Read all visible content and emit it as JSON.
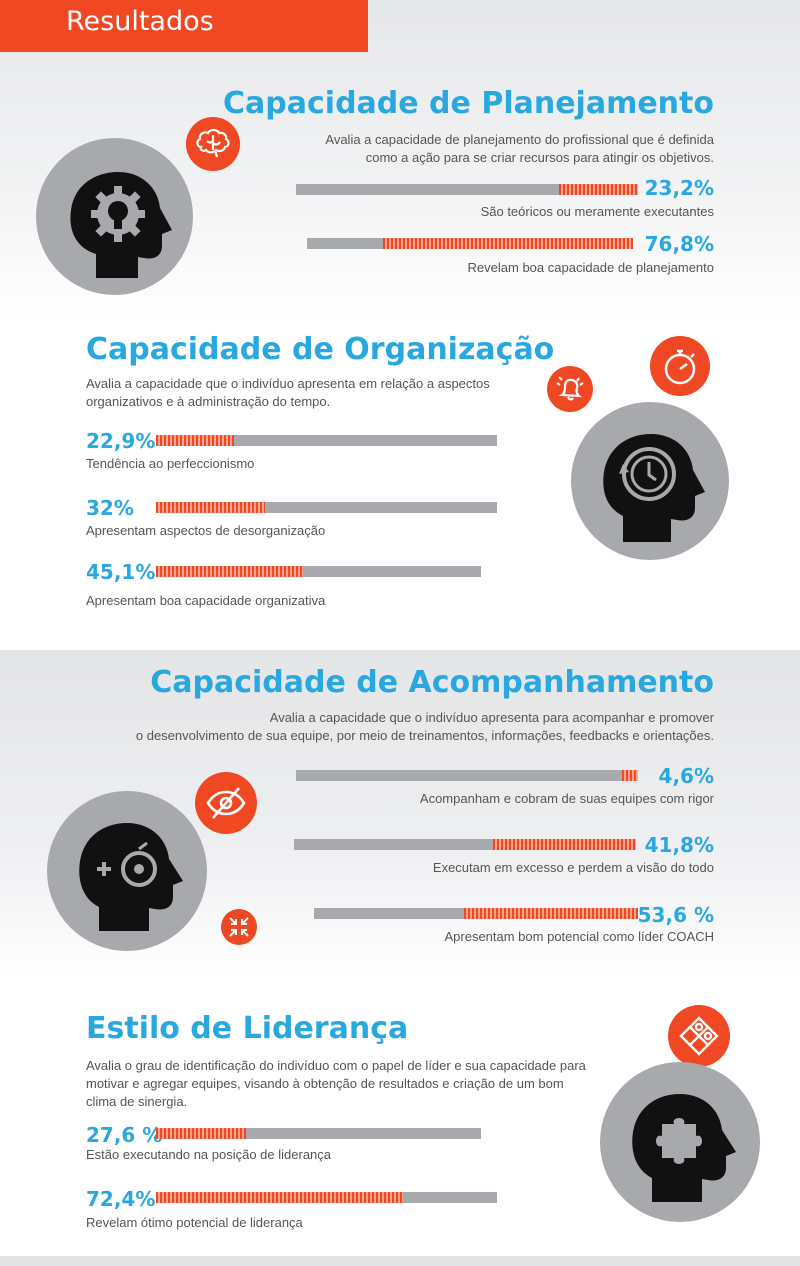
{
  "header": {
    "title": "Resultados"
  },
  "colors": {
    "accent": "#ef4823",
    "title": "#29a8e0",
    "bar": "#a7a9ac",
    "icon_dark": "#111111"
  },
  "sections": [
    {
      "title": "Capacidade de Planejamento",
      "description_lines": [
        "Avalia a capacidade de planejamento do profissional que é definida",
        "como a ação para se criar recursos para atingir os objetivos."
      ],
      "icons": [
        "brain-icon",
        "head-gear-bulb-icon"
      ],
      "stats": [
        {
          "value": "23,2%",
          "fraction": 0.232,
          "label": "São teóricos ou meramente executantes"
        },
        {
          "value": "76,8%",
          "fraction": 0.768,
          "label": "Revelam boa capacidade de planejamento"
        }
      ]
    },
    {
      "title": "Capacidade de Organização",
      "description_lines": [
        "Avalia a capacidade que o indivíduo apresenta em relação a aspectos",
        "organizativos e  à administração do tempo."
      ],
      "icons": [
        "stopwatch-icon",
        "alarm-bell-icon",
        "head-clock-icon"
      ],
      "stats": [
        {
          "value": "22,9%",
          "fraction": 0.229,
          "label": "Tendência ao perfeccionismo"
        },
        {
          "value": "32%",
          "fraction": 0.32,
          "label": "Apresentam aspectos de desorganização"
        },
        {
          "value": "45,1%",
          "fraction": 0.451,
          "label": "Apresentam boa capacidade organizativa"
        }
      ]
    },
    {
      "title": "Capacidade de Acompanhamento",
      "description_lines": [
        "Avalia a capacidade que o indivíduo apresenta para acompanhar e promover",
        "o desenvolvimento de sua equipe, por meio de treinamentos, informações, feedbacks e orientações."
      ],
      "icons": [
        "eye-slash-icon",
        "compress-arrows-icon",
        "head-target-icon"
      ],
      "stats": [
        {
          "value": "4,6%",
          "fraction": 0.046,
          "label": "Acompanham e cobram de suas equipes com rigor"
        },
        {
          "value": "41,8%",
          "fraction": 0.418,
          "label": "Executam em excesso e perdem a visão do todo"
        },
        {
          "value": "53,6 %",
          "fraction": 0.536,
          "label": "Apresentam bom potencial como líder COACH"
        }
      ]
    },
    {
      "title": "Estilo de Liderança",
      "description_lines": [
        "Avalia o grau de identificação do indivíduo com o papel de líder e sua capacidade para",
        "motivar e agregar equipes, visando à obtenção de resultados e criação de um bom",
        "clima de sinergia."
      ],
      "icons": [
        "puzzle-icon",
        "head-puzzle-icon"
      ],
      "stats": [
        {
          "value": "27,6 %",
          "fraction": 0.276,
          "label": "Estão executando na posição de liderança"
        },
        {
          "value": "72,4%",
          "fraction": 0.724,
          "label": "Revelam ótimo potencial de liderança"
        }
      ]
    }
  ]
}
